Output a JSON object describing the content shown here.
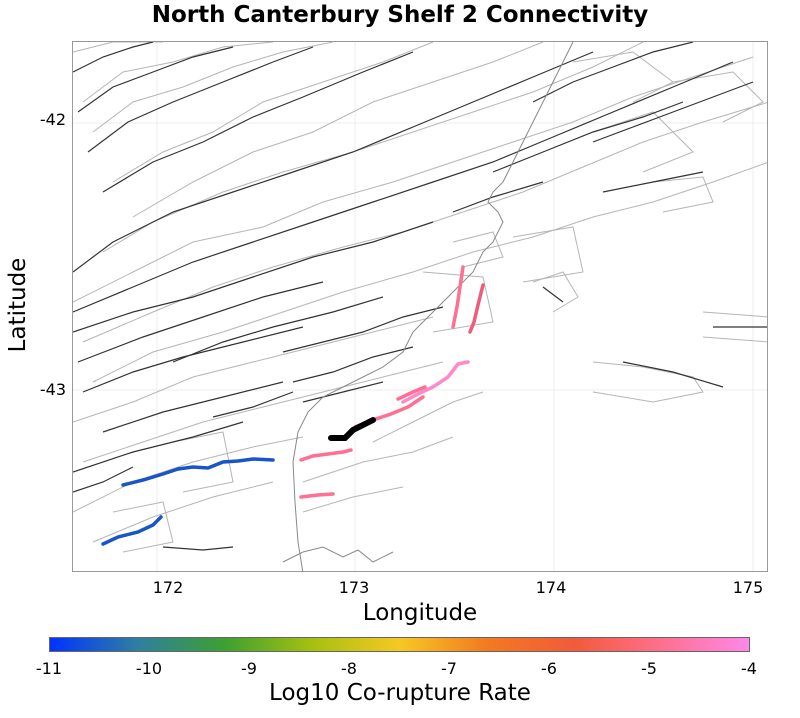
{
  "title": "North Canterbury Shelf 2 Connectivity",
  "x_axis": {
    "label": "Longitude",
    "ticks": [
      "172",
      "173",
      "174",
      "175"
    ]
  },
  "y_axis": {
    "label": "Latitude",
    "ticks": [
      "-42",
      "-43"
    ]
  },
  "colorbar": {
    "label": "Log10 Co-rupture Rate",
    "ticks": [
      "-11",
      "-10",
      "-9",
      "-8",
      "-7",
      "-6",
      "-5",
      "-4"
    ],
    "gradient": [
      "#0033ff",
      "#2f7fa0",
      "#3da030",
      "#a6c010",
      "#f6c823",
      "#f37a20",
      "#f25a3a",
      "#ff6f8f",
      "#ff88e8"
    ]
  },
  "colors": {
    "background_fault": "#333333",
    "fault_outline": "#b0b0b0",
    "blue_rupture": "#1a55c8",
    "pink_rupture": "#ff6f8f",
    "source_fault": "#000000"
  }
}
